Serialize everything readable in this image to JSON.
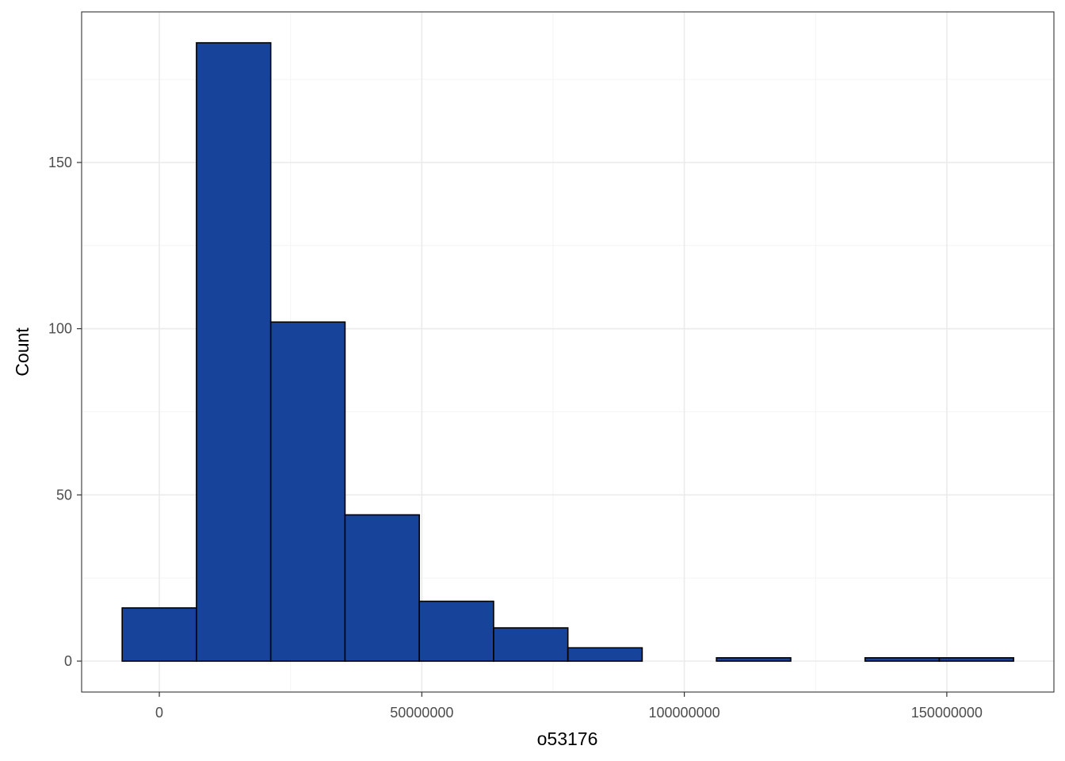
{
  "chart_data": {
    "type": "bar",
    "title": "",
    "xlabel": "o53176",
    "ylabel": "Count",
    "bin_width": 14150000,
    "bins": [
      {
        "x0": -7075000,
        "x1": 7075000,
        "count": 16
      },
      {
        "x0": 7075000,
        "x1": 21225000,
        "count": 186
      },
      {
        "x0": 21225000,
        "x1": 35375000,
        "count": 102
      },
      {
        "x0": 35375000,
        "x1": 49525000,
        "count": 44
      },
      {
        "x0": 49525000,
        "x1": 63675000,
        "count": 18
      },
      {
        "x0": 63675000,
        "x1": 77825000,
        "count": 10
      },
      {
        "x0": 77825000,
        "x1": 91975000,
        "count": 4
      },
      {
        "x0": 91975000,
        "x1": 106125000,
        "count": 0
      },
      {
        "x0": 106125000,
        "x1": 120275000,
        "count": 1
      },
      {
        "x0": 120275000,
        "x1": 134425000,
        "count": 0
      },
      {
        "x0": 134425000,
        "x1": 148575000,
        "count": 1
      },
      {
        "x0": 148575000,
        "x1": 162725000,
        "count": 1
      }
    ],
    "x_ticks": [
      0,
      50000000,
      100000000,
      150000000
    ],
    "x_tick_labels": [
      "0",
      "50000000",
      "100000000",
      "150000000"
    ],
    "y_ticks": [
      0,
      50,
      100,
      150
    ],
    "y_tick_labels": [
      "0",
      "50",
      "100",
      "150"
    ],
    "xlim": [
      -14800000,
      170400000
    ],
    "ylim": [
      -9.3,
      195.3
    ],
    "grid": true,
    "colors": {
      "bar_fill": "#17439A",
      "bar_stroke": "#000000",
      "grid_major": "#EBEBEB",
      "grid_minor": "#F4F4F4",
      "panel_border": "#333333"
    }
  }
}
